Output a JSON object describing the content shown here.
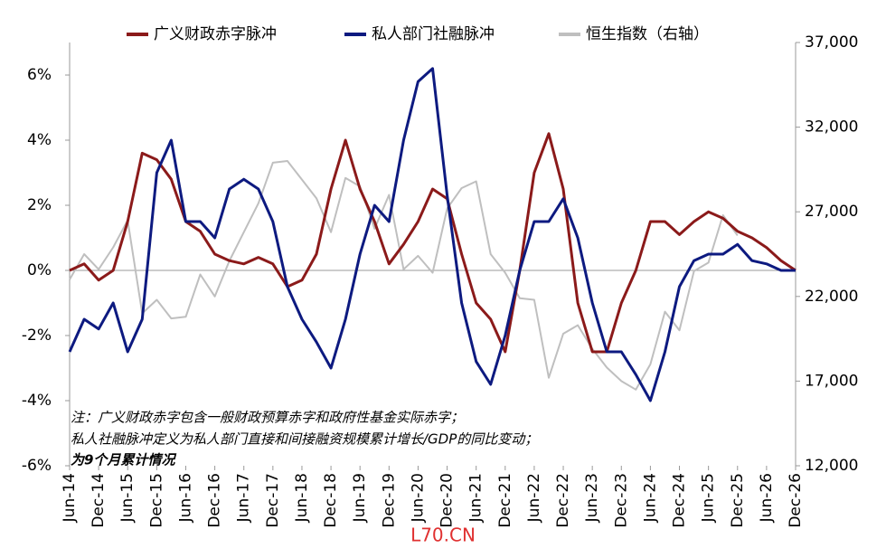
{
  "chart_data": {
    "type": "line",
    "categories": [
      "Jun-14",
      null,
      "Dec-14",
      null,
      "Jun-15",
      null,
      "Dec-15",
      null,
      "Jun-16",
      null,
      "Dec-16",
      null,
      "Jun-17",
      null,
      "Dec-17",
      null,
      "Jun-18",
      null,
      "Dec-18",
      null,
      "Jun-19",
      null,
      "Dec-19",
      null,
      "Jun-20",
      null,
      "Dec-20",
      null,
      "Jun-21",
      null,
      "Dec-21",
      null,
      "Jun-22",
      null,
      "Dec-22",
      null,
      "Jun-23",
      null,
      "Dec-23",
      null,
      "Jun-24",
      null,
      "Dec-24",
      null,
      "Jun-25",
      null,
      "Dec-25",
      null,
      "Jun-26",
      null,
      "Dec-26"
    ],
    "series": [
      {
        "name": "广义财政赤字脉冲",
        "color": "#8b1a1a",
        "values": [
          0,
          0.2,
          -0.3,
          0,
          1.5,
          3.6,
          3.4,
          2.8,
          1.5,
          1.2,
          0.5,
          0.3,
          0.2,
          0.4,
          0.2,
          -0.5,
          -0.3,
          0.5,
          2.5,
          4,
          2.5,
          1.5,
          0.2,
          0.8,
          1.5,
          2.5,
          2.2,
          0.5,
          -1,
          -1.5,
          -2.5,
          0,
          3,
          4.2,
          2.5,
          -1,
          -2.5,
          -2.5,
          -1,
          0,
          1.5,
          1.5,
          1.1,
          1.5,
          1.8,
          1.6,
          1.2,
          1.0,
          0.7,
          0.3,
          0
        ]
      },
      {
        "name": "私人部门社融脉冲",
        "color": "#0d1a80",
        "values": [
          -2.5,
          -1.5,
          -1.8,
          -1,
          -2.5,
          -1.5,
          3,
          4,
          1.5,
          1.5,
          1.0,
          2.5,
          2.8,
          2.5,
          1.5,
          -0.5,
          -1.5,
          -2.2,
          -3,
          -1.5,
          0.5,
          2,
          1.5,
          4,
          5.8,
          6.2,
          2.3,
          -1,
          -2.8,
          -3.5,
          -2,
          0,
          1.5,
          1.5,
          2.2,
          1,
          -1,
          -2.5,
          -2.5,
          -3.2,
          -4,
          -2.5,
          -0.5,
          0.3,
          0.5,
          0.5,
          0.8,
          0.3,
          0.2,
          0,
          0
        ]
      },
      {
        "name": "恒生指数（右轴）",
        "color": "#bfbfbf",
        "axis": "y2",
        "values": [
          23000,
          24500,
          23600,
          24900,
          26500,
          21000,
          21800,
          20700,
          20800,
          23300,
          22000,
          24100,
          25800,
          27500,
          29900,
          30000,
          28900,
          27800,
          25800,
          29000,
          28500,
          26000,
          28000,
          23600,
          24400,
          23400,
          27200,
          28400,
          28800,
          24500,
          23400,
          21900,
          21800,
          17200,
          19800,
          20300,
          18900,
          17800,
          17000,
          16500,
          18000,
          21100,
          20000,
          23500,
          24000,
          26800,
          25600,
          null,
          null,
          null,
          null
        ]
      }
    ],
    "ylim": [
      -6,
      7
    ],
    "yticks": [
      {
        "value": -6,
        "label": "-6%"
      },
      {
        "value": -4,
        "label": "-4%"
      },
      {
        "value": -2,
        "label": "-2%"
      },
      {
        "value": 0,
        "label": "0%"
      },
      {
        "value": 2,
        "label": "2%"
      },
      {
        "value": 4,
        "label": "4%"
      },
      {
        "value": 6,
        "label": "6%"
      }
    ],
    "y2lim": [
      12000,
      37000
    ],
    "y2ticks": [
      {
        "value": 12000,
        "label": "12,000"
      },
      {
        "value": 17000,
        "label": "17,000"
      },
      {
        "value": 22000,
        "label": "22,000"
      },
      {
        "value": 27000,
        "label": "27,000"
      },
      {
        "value": 32000,
        "label": "32,000"
      },
      {
        "value": 37000,
        "label": "37,000"
      }
    ],
    "legend": "top",
    "annotations": [
      "注：广义财政赤字包含一般财政预算赤字和政府性基金实际赤字；",
      "私人社融脉冲定义为私人部门直接和间接融资规模累计增长/GDP的同比变动；",
      "为9个月累计情况"
    ],
    "watermark": "L70.CN"
  }
}
